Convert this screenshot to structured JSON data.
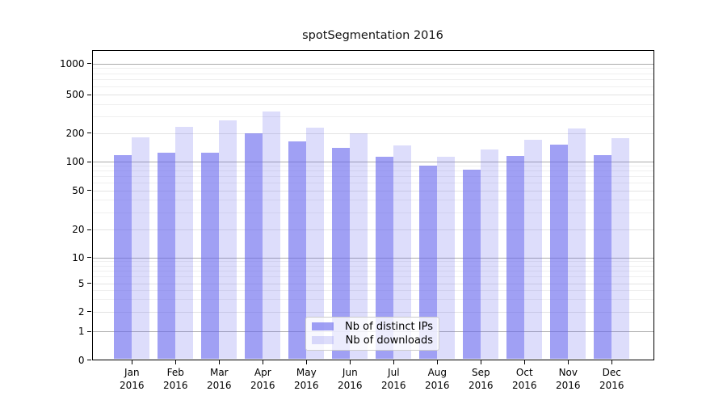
{
  "chart_data": {
    "type": "bar",
    "title": "spotSegmentation 2016",
    "categories": [
      "Jan 2016",
      "Feb 2016",
      "Mar 2016",
      "Apr 2016",
      "May 2016",
      "Jun 2016",
      "Jul 2016",
      "Aug 2016",
      "Sep 2016",
      "Oct 2016",
      "Nov 2016",
      "Dec 2016"
    ],
    "x_tick_months": [
      "Jan",
      "Feb",
      "Mar",
      "Apr",
      "May",
      "Jun",
      "Jul",
      "Aug",
      "Sep",
      "Oct",
      "Nov",
      "Dec"
    ],
    "x_tick_year": "2016",
    "series": [
      {
        "name": "Nb of distinct IPs",
        "color": "#6666ee",
        "opacity": 0.62,
        "values": [
          118,
          125,
          124,
          199,
          165,
          141,
          112,
          91,
          83,
          115,
          150,
          117
        ]
      },
      {
        "name": "Nb of downloads",
        "color": "#6666ee",
        "opacity": 0.22,
        "values": [
          180,
          234,
          270,
          332,
          230,
          200,
          148,
          112,
          135,
          171,
          222,
          177
        ]
      }
    ],
    "yscale": "symlog",
    "y_tick_labels": [
      1000,
      500,
      200,
      100,
      50,
      20,
      10,
      5,
      2,
      1,
      0
    ],
    "ylim": [
      0,
      1350
    ],
    "grid": true,
    "legend_position": "lower center"
  },
  "legend": {
    "items": [
      {
        "label": "Nb of distinct IPs"
      },
      {
        "label": "Nb of downloads"
      }
    ]
  },
  "colors": {
    "bar_base": "#6666ee",
    "grid_decade": "#ababab",
    "grid_labeled": "#e3e3e3",
    "grid_minor": "#efefef",
    "axis": "#000000",
    "legend_border": "#cccccc"
  }
}
